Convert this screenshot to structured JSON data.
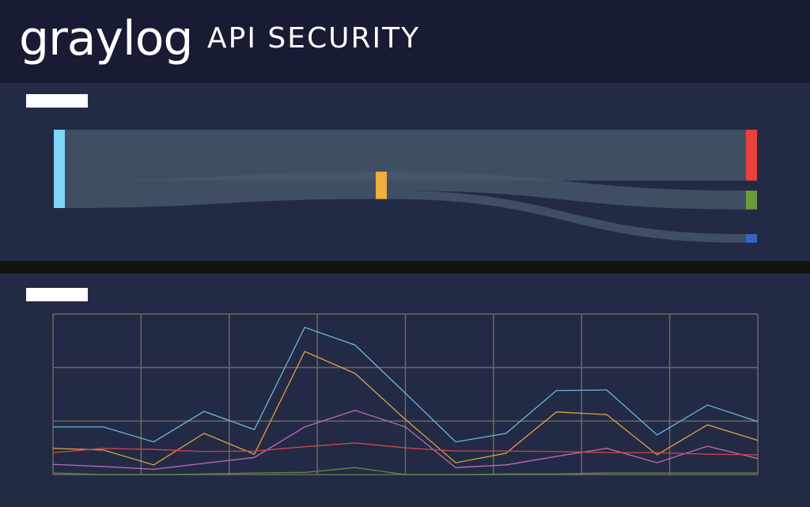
{
  "header": {
    "logo": "graylog",
    "title": "API SECURITY"
  },
  "chart_data": [
    {
      "type": "sankey",
      "nodes": [
        {
          "color": "#7fd6f5"
        },
        {
          "color": "#e8413c"
        },
        {
          "color": "#efae3d"
        },
        {
          "color": "#6a9c3a"
        },
        {
          "color": "#3a63c4"
        }
      ],
      "links": [
        {
          "source": 0,
          "target": 1,
          "value": 65
        },
        {
          "source": 0,
          "target": 2,
          "value": 35
        },
        {
          "source": 2,
          "target": 3,
          "value": 24
        },
        {
          "source": 2,
          "target": 4,
          "value": 11
        }
      ]
    },
    {
      "type": "line",
      "x": [
        0,
        1,
        2,
        3,
        4,
        5,
        6,
        7,
        8,
        9,
        10,
        11,
        12,
        13,
        14
      ],
      "xlim": [
        0,
        14
      ],
      "xticks": [
        0,
        1.75,
        3.5,
        5.25,
        7,
        8.75,
        10.5,
        12.25,
        14
      ],
      "ylim": [
        0,
        3
      ],
      "yticks": [
        0,
        1,
        2,
        3
      ],
      "grid": true,
      "series": [
        {
          "color": "#6ab7d6",
          "values": [
            0.89,
            0.89,
            0.61,
            1.18,
            0.84,
            2.75,
            2.42,
            1.52,
            0.61,
            0.77,
            1.57,
            1.58,
            0.74,
            1.3,
            0.99
          ]
        },
        {
          "color": "#d9a443",
          "values": [
            0.49,
            0.46,
            0.18,
            0.77,
            0.38,
            2.3,
            1.89,
            1.03,
            0.22,
            0.4,
            1.17,
            1.12,
            0.37,
            0.93,
            0.64
          ]
        },
        {
          "color": "#c46bb5",
          "values": [
            0.19,
            0.15,
            0.1,
            0.21,
            0.32,
            0.89,
            1.2,
            0.89,
            0.13,
            0.18,
            0.34,
            0.49,
            0.22,
            0.53,
            0.3
          ]
        },
        {
          "color": "#d2464f",
          "values": [
            0.41,
            0.49,
            0.47,
            0.43,
            0.44,
            0.52,
            0.59,
            0.5,
            0.44,
            0.44,
            0.43,
            0.41,
            0.41,
            0.38,
            0.37
          ]
        },
        {
          "color": "#5d8a46",
          "values": [
            0.03,
            0,
            0,
            0.01,
            0.03,
            0.04,
            0.13,
            0,
            0,
            0.01,
            0.01,
            0.03,
            0.03,
            0.03,
            0.03
          ]
        }
      ]
    }
  ]
}
